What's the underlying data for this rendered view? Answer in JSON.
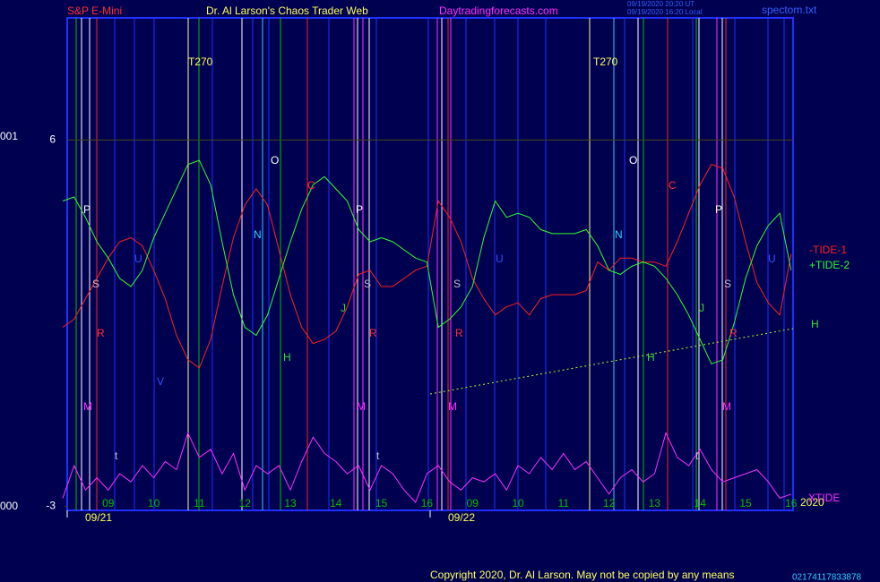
{
  "chart_data": {
    "type": "line",
    "header": {
      "symbol": "S&P E-Mini",
      "author": "Dr. Al Larson's Chaos Trader Web",
      "site": "Daytradingforecasts.com",
      "stamp_ut": "09/19/2020 20:20 UT",
      "stamp_local": "09/19/2020 16:20 Local",
      "file": "spectom.txt"
    },
    "left_labels": [
      "001",
      "000"
    ],
    "days": [
      "09/21",
      "09/22"
    ],
    "year": "2020",
    "trend_label": "H",
    "copyright": "Copyright 2020, Dr. Al Larson. May not be copied by any means",
    "corner_code": "02174117833878",
    "ylim": [
      -3.1,
      9
    ],
    "yticks": [
      -3,
      6
    ],
    "grid": true,
    "categories": [
      null,
      null,
      null,
      null,
      "09",
      null,
      null,
      null,
      "10",
      null,
      null,
      null,
      "11",
      null,
      null,
      null,
      "12",
      null,
      null,
      null,
      "13",
      null,
      null,
      null,
      "14",
      null,
      null,
      null,
      "15",
      null,
      null,
      null,
      "16",
      null,
      null,
      null,
      "09",
      null,
      null,
      null,
      "10",
      null,
      null,
      null,
      "11",
      null,
      null,
      null,
      "12",
      null,
      null,
      null,
      "13",
      null,
      null,
      null,
      "14",
      null,
      null,
      null,
      "15",
      null,
      null,
      null,
      "16"
    ],
    "series": [
      {
        "name": "-TIDE-1",
        "color": "#ff2020",
        "values": [
          1.4,
          1.6,
          2.1,
          2.6,
          3.1,
          3.5,
          3.6,
          3.4,
          2.8,
          2.1,
          1.2,
          0.6,
          0.4,
          1.1,
          2.4,
          3.6,
          4.4,
          4.8,
          4.4,
          3.3,
          2.2,
          1.4,
          1.0,
          1.1,
          1.3,
          1.9,
          2.7,
          2.8,
          2.4,
          2.4,
          2.6,
          2.8,
          2.9,
          4.5,
          4.1,
          3.5,
          2.6,
          2.1,
          1.7,
          1.9,
          2.0,
          1.7,
          2.1,
          2.2,
          2.2,
          2.2,
          2.3,
          3.0,
          2.8,
          3.1,
          3.1,
          3.0,
          3.0,
          2.9,
          3.5,
          4.2,
          4.9,
          5.4,
          5.3,
          4.6,
          3.5,
          2.5,
          2.0,
          1.7,
          3.2
        ]
      },
      {
        "name": "+TIDE-2",
        "color": "#30ff30",
        "values": [
          4.5,
          4.6,
          4.1,
          3.5,
          3.1,
          2.6,
          2.4,
          2.8,
          3.6,
          4.2,
          4.8,
          5.4,
          5.5,
          4.9,
          3.5,
          2.2,
          1.4,
          1.2,
          1.7,
          2.6,
          3.5,
          4.3,
          4.9,
          5.1,
          4.8,
          4.5,
          3.8,
          3.5,
          3.6,
          3.5,
          3.3,
          3.1,
          3.0,
          1.4,
          1.6,
          1.9,
          2.4,
          3.6,
          4.5,
          4.1,
          4.2,
          4.1,
          3.8,
          3.7,
          3.7,
          3.7,
          3.8,
          3.4,
          2.8,
          2.7,
          2.9,
          3.0,
          2.9,
          2.6,
          2.2,
          1.7,
          1.1,
          0.5,
          0.6,
          1.5,
          2.6,
          3.4,
          3.9,
          4.2,
          2.8
        ]
      },
      {
        "name": "XTIDE",
        "color": "#ff30ff",
        "values": [
          -2.8,
          -2.0,
          -2.6,
          -2.3,
          -2.6,
          -2.2,
          -2.4,
          -2.0,
          -2.3,
          -1.9,
          -2.1,
          -1.2,
          -1.8,
          -1.6,
          -2.2,
          -1.7,
          -2.6,
          -2.0,
          -2.2,
          -2.0,
          -2.6,
          -1.9,
          -1.3,
          -1.7,
          -1.9,
          -2.2,
          -2.0,
          -2.6,
          -2.0,
          -2.2,
          -2.6,
          -2.9,
          -2.2,
          -2.0,
          -2.4,
          -2.6,
          -2.3,
          -2.4,
          -2.2,
          -2.6,
          -2.0,
          -2.2,
          -1.8,
          -2.1,
          -1.7,
          -2.1,
          -1.9,
          -2.3,
          -2.7,
          -2.3,
          -2.1,
          -2.4,
          -2.2,
          -1.2,
          -1.8,
          -2.0,
          -1.6,
          -2.1,
          -2.4,
          -2.3,
          -2.2,
          -2.1,
          -2.4,
          -2.8,
          -2.7
        ]
      }
    ],
    "annotations": [
      {
        "text": "T270",
        "color": "#ffff60"
      },
      {
        "text": "T270",
        "color": "#ffff60"
      },
      {
        "text": "P",
        "color": "#ffffff"
      },
      {
        "text": "P",
        "color": "#ffffff"
      },
      {
        "text": "P",
        "color": "#ffffff"
      },
      {
        "text": "O",
        "color": "#ffffff"
      },
      {
        "text": "O",
        "color": "#ffffff"
      },
      {
        "text": "C",
        "color": "#ff3030"
      },
      {
        "text": "C",
        "color": "#ff3030"
      },
      {
        "text": "N",
        "color": "#30d0ff"
      },
      {
        "text": "N",
        "color": "#30d0ff"
      },
      {
        "text": "U",
        "color": "#3050ff"
      },
      {
        "text": "U",
        "color": "#3050ff"
      },
      {
        "text": "U",
        "color": "#3050ff"
      },
      {
        "text": "S",
        "color": "#c0c0c0"
      },
      {
        "text": "S",
        "color": "#c0c0c0"
      },
      {
        "text": "S",
        "color": "#c0c0c0"
      },
      {
        "text": "S",
        "color": "#c0c0c0"
      },
      {
        "text": "J",
        "color": "#30e030"
      },
      {
        "text": "J",
        "color": "#30e030"
      },
      {
        "text": "R",
        "color": "#ff3030"
      },
      {
        "text": "R",
        "color": "#ff3030"
      },
      {
        "text": "R",
        "color": "#ff3030"
      },
      {
        "text": "R",
        "color": "#ff3030"
      },
      {
        "text": "H",
        "color": "#30e030"
      },
      {
        "text": "H",
        "color": "#30e030"
      },
      {
        "text": "V",
        "color": "#3050ff"
      },
      {
        "text": "M",
        "color": "#ff30ff"
      },
      {
        "text": "M",
        "color": "#ff30ff"
      },
      {
        "text": "M",
        "color": "#ff30ff"
      },
      {
        "text": "M",
        "color": "#ff30ff"
      },
      {
        "text": "t",
        "color": "#c0c0c0"
      },
      {
        "text": "t",
        "color": "#c0c0c0"
      },
      {
        "text": "t",
        "color": "#c0c0c0"
      }
    ]
  }
}
